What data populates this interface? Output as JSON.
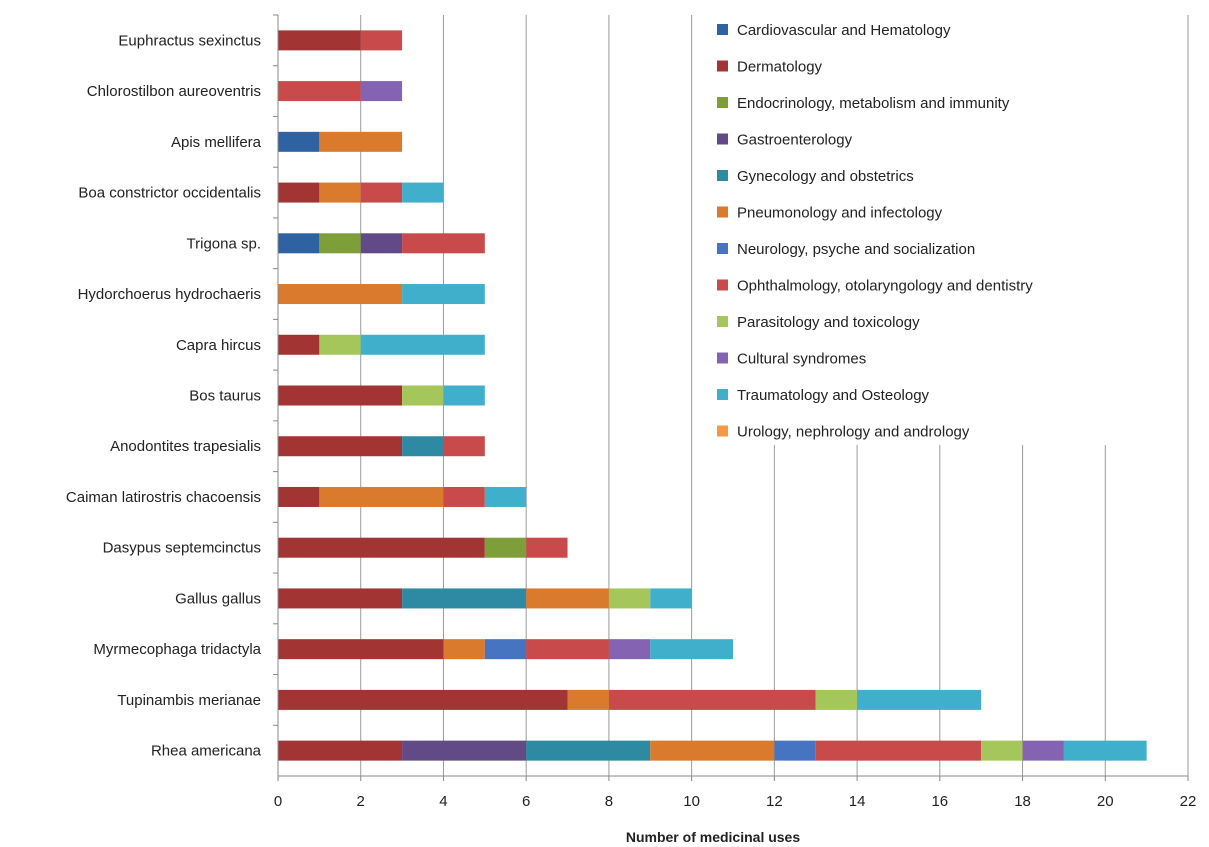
{
  "chart_data": {
    "type": "bar",
    "orientation": "horizontal",
    "stacked": true,
    "xlabel": "Number of medicinal uses",
    "ylabel": "",
    "xlim": [
      0,
      22
    ],
    "xticks": [
      0,
      2,
      4,
      6,
      8,
      10,
      12,
      14,
      16,
      18,
      20,
      22
    ],
    "grid": "vertical",
    "legend_position": "top-right",
    "categories": [
      "Euphractus sexinctus",
      "Chlorostilbon aureoventris",
      "Apis mellifera",
      "Boa constrictor occidentalis",
      "Trigona sp.",
      "Hydorchoerus hydrochaeris",
      "Capra hircus",
      "Bos taurus",
      "Anodontites trapesialis",
      "Caiman latirostris chacoensis",
      "Dasypus septemcinctus",
      "Gallus gallus",
      "Myrmecophaga tridactyla",
      "Tupinambis merianae",
      "Rhea americana"
    ],
    "series": [
      {
        "name": "Cardiovascular and Hematology",
        "color": "#2E62A0",
        "values": [
          0,
          0,
          1,
          0,
          1,
          0,
          0,
          0,
          0,
          0,
          0,
          0,
          0,
          0,
          0
        ]
      },
      {
        "name": "Dermatology",
        "color": "#A23533",
        "values": [
          2,
          0,
          0,
          1,
          0,
          0,
          1,
          3,
          3,
          1,
          5,
          3,
          4,
          7,
          3
        ]
      },
      {
        "name": "Endocrinology, metabolism and immunity",
        "color": "#7E9E3A",
        "values": [
          0,
          0,
          0,
          0,
          1,
          0,
          0,
          0,
          0,
          0,
          1,
          0,
          0,
          0,
          0
        ]
      },
      {
        "name": "Gastroenterology",
        "color": "#624A86",
        "values": [
          0,
          0,
          0,
          0,
          1,
          0,
          0,
          0,
          0,
          0,
          0,
          0,
          0,
          0,
          3
        ]
      },
      {
        "name": "Gynecology and obstetrics",
        "color": "#2E8AA3",
        "values": [
          0,
          0,
          0,
          0,
          0,
          0,
          0,
          0,
          1,
          0,
          0,
          3,
          0,
          0,
          3
        ]
      },
      {
        "name": "Pneumonology and infectology",
        "color": "#D97A2D",
        "values": [
          0,
          0,
          2,
          1,
          0,
          3,
          0,
          0,
          0,
          3,
          0,
          2,
          1,
          1,
          3
        ]
      },
      {
        "name": "Neurology, psyche and socialization",
        "color": "#4674C1",
        "values": [
          0,
          0,
          0,
          0,
          0,
          0,
          0,
          0,
          0,
          0,
          0,
          0,
          1,
          0,
          1
        ]
      },
      {
        "name": "Ophthalmology, otolaryngology and dentistry",
        "color": "#C84A4A",
        "values": [
          1,
          2,
          0,
          1,
          2,
          0,
          0,
          0,
          1,
          1,
          1,
          0,
          2,
          5,
          4
        ]
      },
      {
        "name": "Parasitology and toxicology",
        "color": "#A5C65A",
        "values": [
          0,
          0,
          0,
          0,
          0,
          0,
          1,
          1,
          0,
          0,
          0,
          1,
          0,
          1,
          1
        ]
      },
      {
        "name": "Cultural syndromes",
        "color": "#8463B3",
        "values": [
          0,
          1,
          0,
          0,
          0,
          0,
          0,
          0,
          0,
          0,
          0,
          0,
          1,
          0,
          1
        ]
      },
      {
        "name": "Traumatology and Osteology",
        "color": "#3FAFCB",
        "values": [
          0,
          0,
          0,
          1,
          0,
          2,
          3,
          1,
          0,
          1,
          0,
          1,
          2,
          3,
          2
        ]
      },
      {
        "name": "Urology, nephrology and andrology",
        "color": "#F59A44",
        "values": [
          0,
          0,
          0,
          0,
          0,
          0,
          0,
          0,
          0,
          0,
          0,
          0,
          0,
          0,
          0
        ]
      }
    ]
  }
}
